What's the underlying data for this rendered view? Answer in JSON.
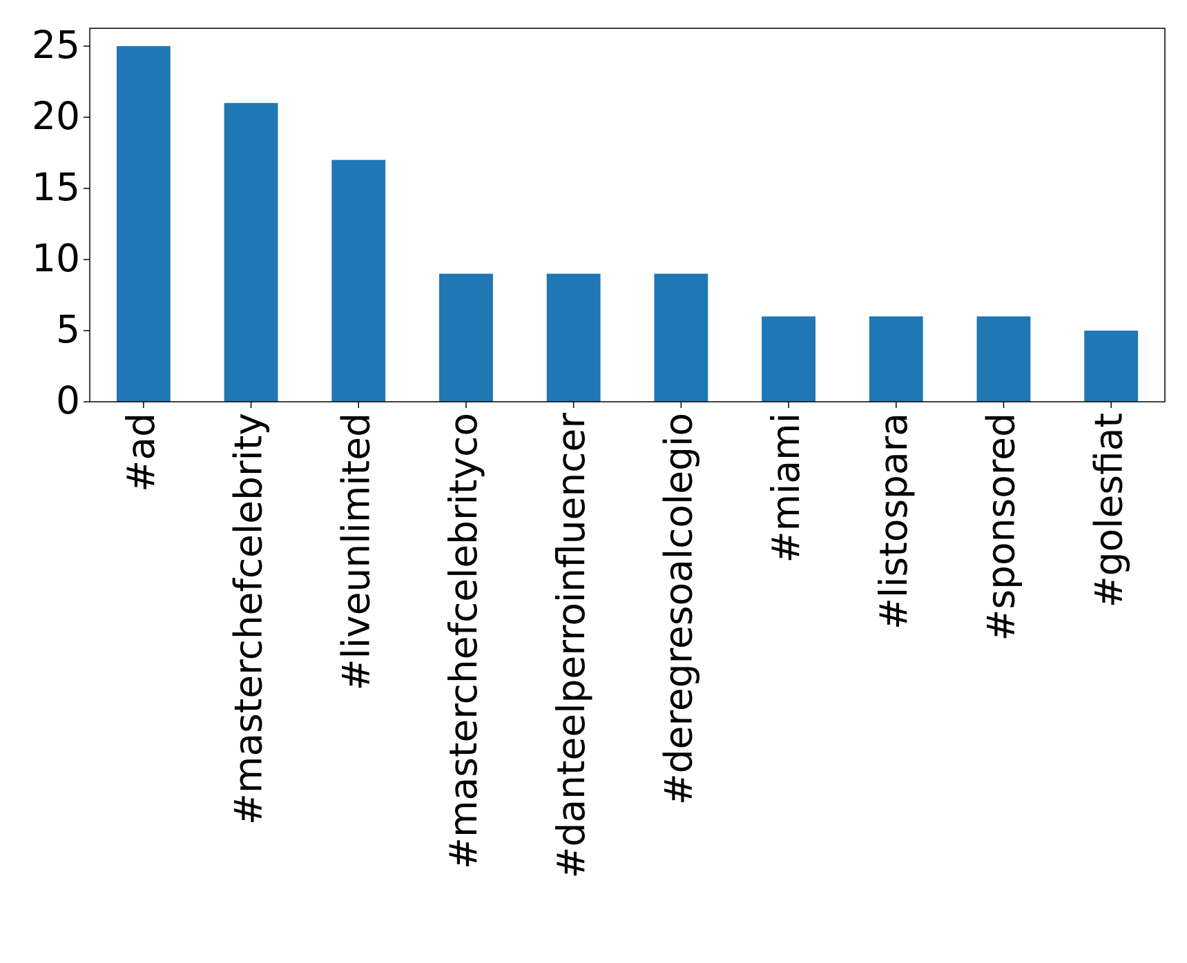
{
  "chart_data": {
    "type": "bar",
    "categories": [
      "#ad",
      "#masterchefcelebrity",
      "#liveunlimited",
      "#masterchefcelebrityco",
      "#danteelperroinfluencer",
      "#deregresoalcolegio",
      "#miami",
      "#listospara",
      "#sponsored",
      "#golesfiat"
    ],
    "values": [
      25,
      21,
      17,
      9,
      9,
      9,
      6,
      6,
      6,
      5
    ],
    "color": "#1f77b4",
    "ylim": [
      0,
      26.25
    ],
    "yticks": [
      0,
      5,
      10,
      15,
      20,
      25
    ],
    "grid": false
  }
}
